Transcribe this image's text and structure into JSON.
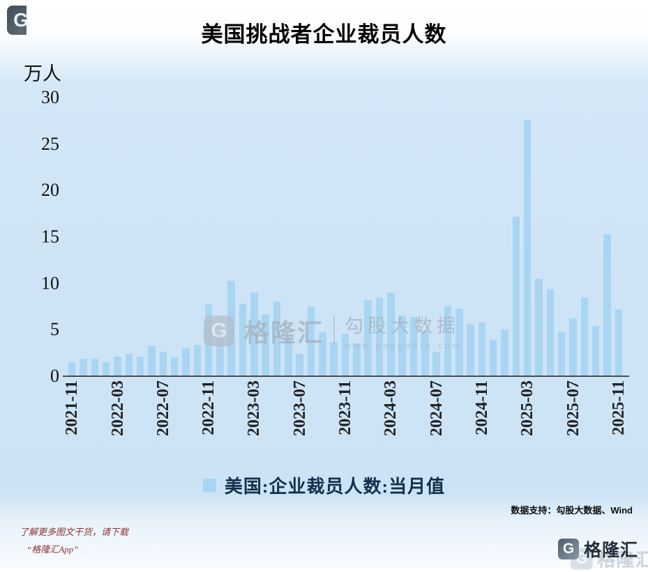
{
  "title": "美国挑战者企业裁员人数",
  "y_axis": {
    "unit": "万人",
    "ticks": [
      30,
      25,
      20,
      15,
      10,
      5,
      0
    ]
  },
  "legend": {
    "label": "美国:企业裁员人数:当月值",
    "color": "#a9d5f3"
  },
  "watermark": {
    "icon": "G",
    "brand": "格隆汇",
    "product": "勾股大数据",
    "site": "www.gogudata.com"
  },
  "footer": {
    "support": "数据支持：勾股大数据、Wind",
    "promo_line1": "了解更多图文干货，请下载",
    "promo_line2": "“格隆汇App”",
    "brand": "格隆汇",
    "brand_icon": "G"
  },
  "corner_icon": "G",
  "chart_data": {
    "type": "bar",
    "title": "美国挑战者企业裁员人数",
    "ylabel": "万人",
    "ylim": [
      0,
      30
    ],
    "series_name": "美国:企业裁员人数:当月值",
    "bar_color": "#a9d5f3",
    "grid": false,
    "legend_position": "bottom",
    "x": [
      "2021-11",
      "2021-12",
      "2022-01",
      "2022-02",
      "2022-03",
      "2022-04",
      "2022-05",
      "2022-06",
      "2022-07",
      "2022-08",
      "2022-09",
      "2022-10",
      "2022-11",
      "2022-12",
      "2023-01",
      "2023-02",
      "2023-03",
      "2023-04",
      "2023-05",
      "2023-06",
      "2023-07",
      "2023-08",
      "2023-09",
      "2023-10",
      "2023-11",
      "2023-12",
      "2024-01",
      "2024-02",
      "2024-03",
      "2024-04",
      "2024-05",
      "2024-06",
      "2024-07",
      "2024-08",
      "2024-09",
      "2024-10",
      "2024-11",
      "2024-12",
      "2025-01",
      "2025-02",
      "2025-03",
      "2025-04",
      "2025-05",
      "2025-06",
      "2025-07",
      "2025-08",
      "2025-09",
      "2025-10",
      "2025-11"
    ],
    "values": [
      1.5,
      1.9,
      1.9,
      1.5,
      2.1,
      2.4,
      2.1,
      3.3,
      2.6,
      2.0,
      3.0,
      3.4,
      7.7,
      4.4,
      10.3,
      7.8,
      9.0,
      6.7,
      8.0,
      4.1,
      2.4,
      7.5,
      4.7,
      3.7,
      4.6,
      3.5,
      8.2,
      8.5,
      9.0,
      6.5,
      6.4,
      4.9,
      2.6,
      7.6,
      7.3,
      5.6,
      5.8,
      3.9,
      5.0,
      17.2,
      27.6,
      10.5,
      9.4,
      4.8,
      6.2,
      8.5,
      5.4,
      15.3,
      7.2
    ],
    "x_tick_labels": [
      "2021-11",
      "2022-03",
      "2022-07",
      "2022-11",
      "2023-03",
      "2023-07",
      "2023-11",
      "2024-03",
      "2024-07",
      "2024-11",
      "2025-03",
      "2025-07",
      "2025-11"
    ],
    "x_tick_every": 4
  }
}
